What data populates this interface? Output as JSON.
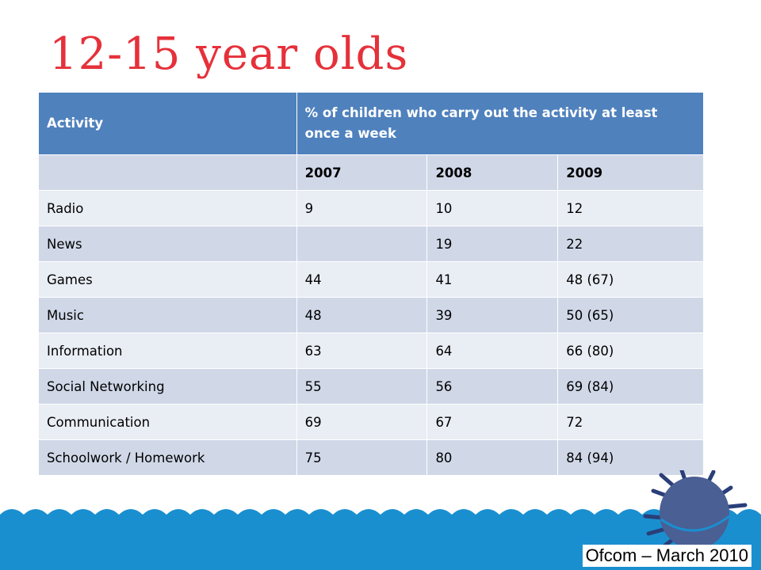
{
  "title": "12-15 year olds",
  "table": {
    "header": {
      "activity": "Activity",
      "description": "% of children who carry out the activity at least once a week"
    },
    "years": [
      "2007",
      "2008",
      "2009"
    ],
    "rows": [
      {
        "activity": "Radio",
        "y2007": "9",
        "y2008": "10",
        "y2009": "12"
      },
      {
        "activity": "News",
        "y2007": "",
        "y2008": "19",
        "y2009": "22"
      },
      {
        "activity": "Games",
        "y2007": "44",
        "y2008": "41",
        "y2009": "48 (67)"
      },
      {
        "activity": "Music",
        "y2007": "48",
        "y2008": "39",
        "y2009": "50 (65)"
      },
      {
        "activity": "Information",
        "y2007": "63",
        "y2008": "64",
        "y2009": "66 (80)"
      },
      {
        "activity": "Social Networking",
        "y2007": "55",
        "y2008": "56",
        "y2009": "69 (84)"
      },
      {
        "activity": "Communication",
        "y2007": "69",
        "y2008": "67",
        "y2009": "72"
      },
      {
        "activity": "Schoolwork / Homework",
        "y2007": "75",
        "y2008": "80",
        "y2009": "84 (94)"
      }
    ]
  },
  "source": "Ofcom – March 2010",
  "colors": {
    "title": "#e5313a",
    "header_bg": "#4f81bd",
    "row_dark": "#d0d8e8",
    "row_light": "#e9edf4",
    "water": "#1a8fd0",
    "buoy": "#4a5f93"
  }
}
